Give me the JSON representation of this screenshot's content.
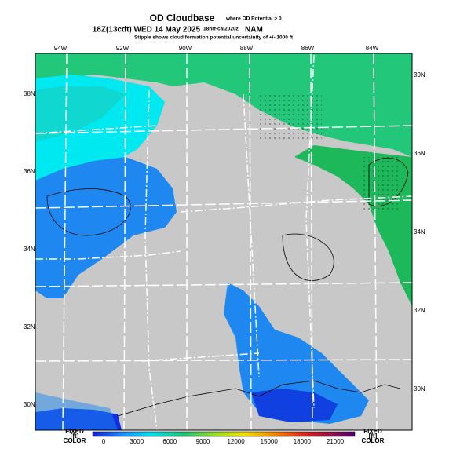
{
  "header": {
    "title": "OD Cloudbase",
    "title_note": "where OD Potential > 0",
    "valid_time": "18Z(13cdt) WED 14 May 2025",
    "run": "18hrf-cal2020z",
    "model": "NAM",
    "subtitle": "Stipple shows cloud formation potential uncertainity of +/- 1000 ft"
  },
  "lon_labels": [
    "94W",
    "92W",
    "90W",
    "88W",
    "86W",
    "84W"
  ],
  "lat_labels_left": [
    "38N",
    "36N",
    "34N",
    "32N",
    "30N"
  ],
  "lat_labels_right": [
    "39N",
    "36N",
    "34N",
    "32N",
    "30N"
  ],
  "colorbar": {
    "left_labels": [
      "FIXED",
      "[ft]",
      "COLOR"
    ],
    "right_labels": [
      "FIXED",
      "[ft]",
      "COLOR"
    ],
    "ticks": [
      "0",
      "3000",
      "6000",
      "9000",
      "12000",
      "15000",
      "18000",
      "21000"
    ]
  }
}
